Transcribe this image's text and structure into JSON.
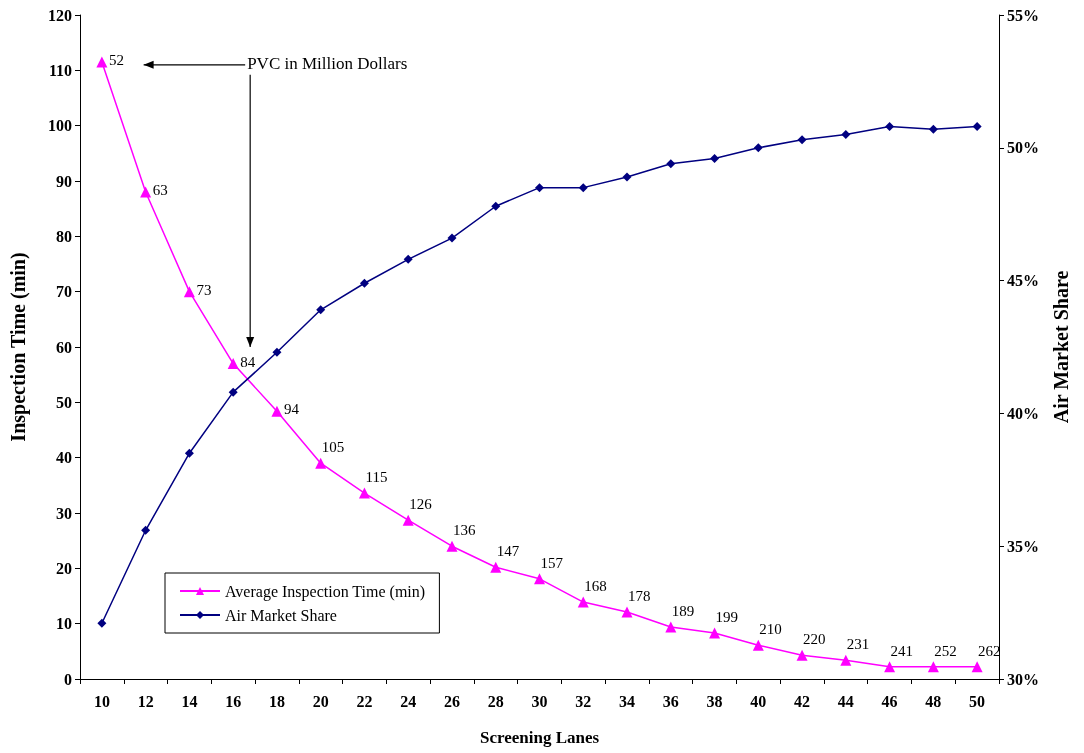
{
  "chart_data": {
    "type": "line",
    "xlabel": "Screening Lanes",
    "ylabel": "Inspection Time (min)",
    "y2label": "Air Market Share",
    "categories": [
      "10",
      "12",
      "14",
      "16",
      "18",
      "20",
      "22",
      "24",
      "26",
      "28",
      "30",
      "32",
      "34",
      "36",
      "38",
      "40",
      "42",
      "44",
      "46",
      "48",
      "50"
    ],
    "series": [
      {
        "name": "Average Inspection Time (min)",
        "color": "#ff00ff",
        "marker": "triangle",
        "values": [
          111.5,
          88,
          70,
          57,
          48.4,
          39,
          33.6,
          28.7,
          24,
          20.2,
          18.1,
          13.9,
          12.1,
          9.4,
          8.3,
          6.1,
          4.3,
          3.4,
          2.2,
          2.2,
          2.2
        ]
      },
      {
        "name": "Air Market Share",
        "color": "#000080",
        "marker": "diamond",
        "axis": "y2",
        "values": [
          32.1,
          35.6,
          38.5,
          40.8,
          42.3,
          43.9,
          44.9,
          45.8,
          46.6,
          47.8,
          48.5,
          48.5,
          48.9,
          49.4,
          49.6,
          50,
          50.3,
          50.5,
          50.8,
          50.7,
          50.8
        ]
      }
    ],
    "ylim": [
      0,
      120
    ],
    "yticks": [
      0,
      10,
      20,
      30,
      40,
      50,
      60,
      70,
      80,
      90,
      100,
      110,
      120
    ],
    "y2lim": [
      30,
      55
    ],
    "y2ticks": [
      {
        "value": 30,
        "label": "30%"
      },
      {
        "value": 35,
        "label": "35%"
      },
      {
        "value": 40,
        "label": "40%"
      },
      {
        "value": 45,
        "label": "45%"
      },
      {
        "value": 50,
        "label": "50%"
      },
      {
        "value": 55,
        "label": "55%"
      }
    ],
    "annotations": [
      "PVC in Million Dollars",
      {
        "text": "52",
        "x": "10",
        "y": 111.5
      },
      {
        "text": "63",
        "x": "12",
        "y": 88
      },
      {
        "text": "73",
        "x": "14",
        "y": 70
      },
      {
        "text": "84",
        "x": "16",
        "y": 57
      },
      {
        "text": "94",
        "x": "18",
        "y": 48.4
      },
      {
        "text": "105",
        "x": "20",
        "y": 39
      },
      {
        "text": "115",
        "x": "22",
        "y": 33.6
      },
      {
        "text": "126",
        "x": "24",
        "y": 28.7
      },
      {
        "text": "136",
        "x": "26",
        "y": 24
      },
      {
        "text": "147",
        "x": "28",
        "y": 20.2
      },
      {
        "text": "157",
        "x": "30",
        "y": 18.1
      },
      {
        "text": "168",
        "x": "32",
        "y": 13.9
      },
      {
        "text": "178",
        "x": "34",
        "y": 12.1
      },
      {
        "text": "189",
        "x": "36",
        "y": 9.4
      },
      {
        "text": "199",
        "x": "38",
        "y": 8.3
      },
      {
        "text": "210",
        "x": "40",
        "y": 6.1
      },
      {
        "text": "220",
        "x": "42",
        "y": 4.3
      },
      {
        "text": "231",
        "x": "44",
        "y": 3.4
      },
      {
        "text": "241",
        "x": "46",
        "y": 2.2
      },
      {
        "text": "252",
        "x": "48",
        "y": 2.2
      },
      {
        "text": "262",
        "x": "50",
        "y": 2.2
      }
    ],
    "legend": "bottom left",
    "grid": false,
    "line_style": "solid"
  }
}
